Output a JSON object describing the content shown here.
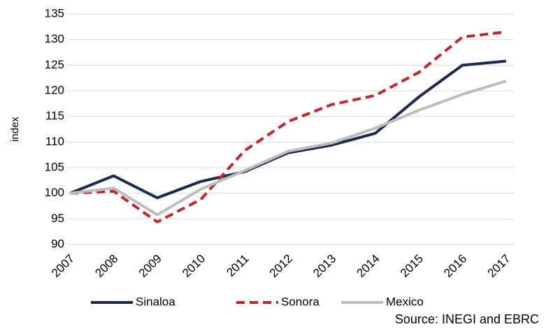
{
  "chart_data": {
    "type": "line",
    "y_label": "index",
    "source": "Source: INEGI and EBRC",
    "categories": [
      "2007",
      "2008",
      "2009",
      "2010",
      "2011",
      "2012",
      "2013",
      "2014",
      "2015",
      "2016",
      "2017"
    ],
    "series": [
      {
        "name": "Sinaloa",
        "color": "#1b2a4e",
        "style": "solid",
        "values": [
          100,
          103.4,
          99.1,
          102.3,
          104.2,
          107.9,
          109.4,
          111.7,
          118.8,
          125,
          125.8
        ]
      },
      {
        "name": "Sonora",
        "color": "#c0282d",
        "style": "dashed",
        "values": [
          100,
          100.4,
          94.4,
          98.8,
          108.3,
          114,
          117.3,
          119.1,
          123.6,
          130.5,
          131.5
        ]
      },
      {
        "name": "Mexico",
        "color": "#bdbdbd",
        "style": "solid",
        "values": [
          100,
          101,
          95.8,
          100.8,
          104.4,
          108.2,
          109.8,
          112.7,
          116.2,
          119.3,
          121.9
        ]
      }
    ],
    "ylim": [
      90,
      135
    ],
    "yticks": [
      90,
      95,
      100,
      105,
      110,
      115,
      120,
      125,
      130,
      135
    ],
    "grid": true,
    "legend": "bottom"
  }
}
